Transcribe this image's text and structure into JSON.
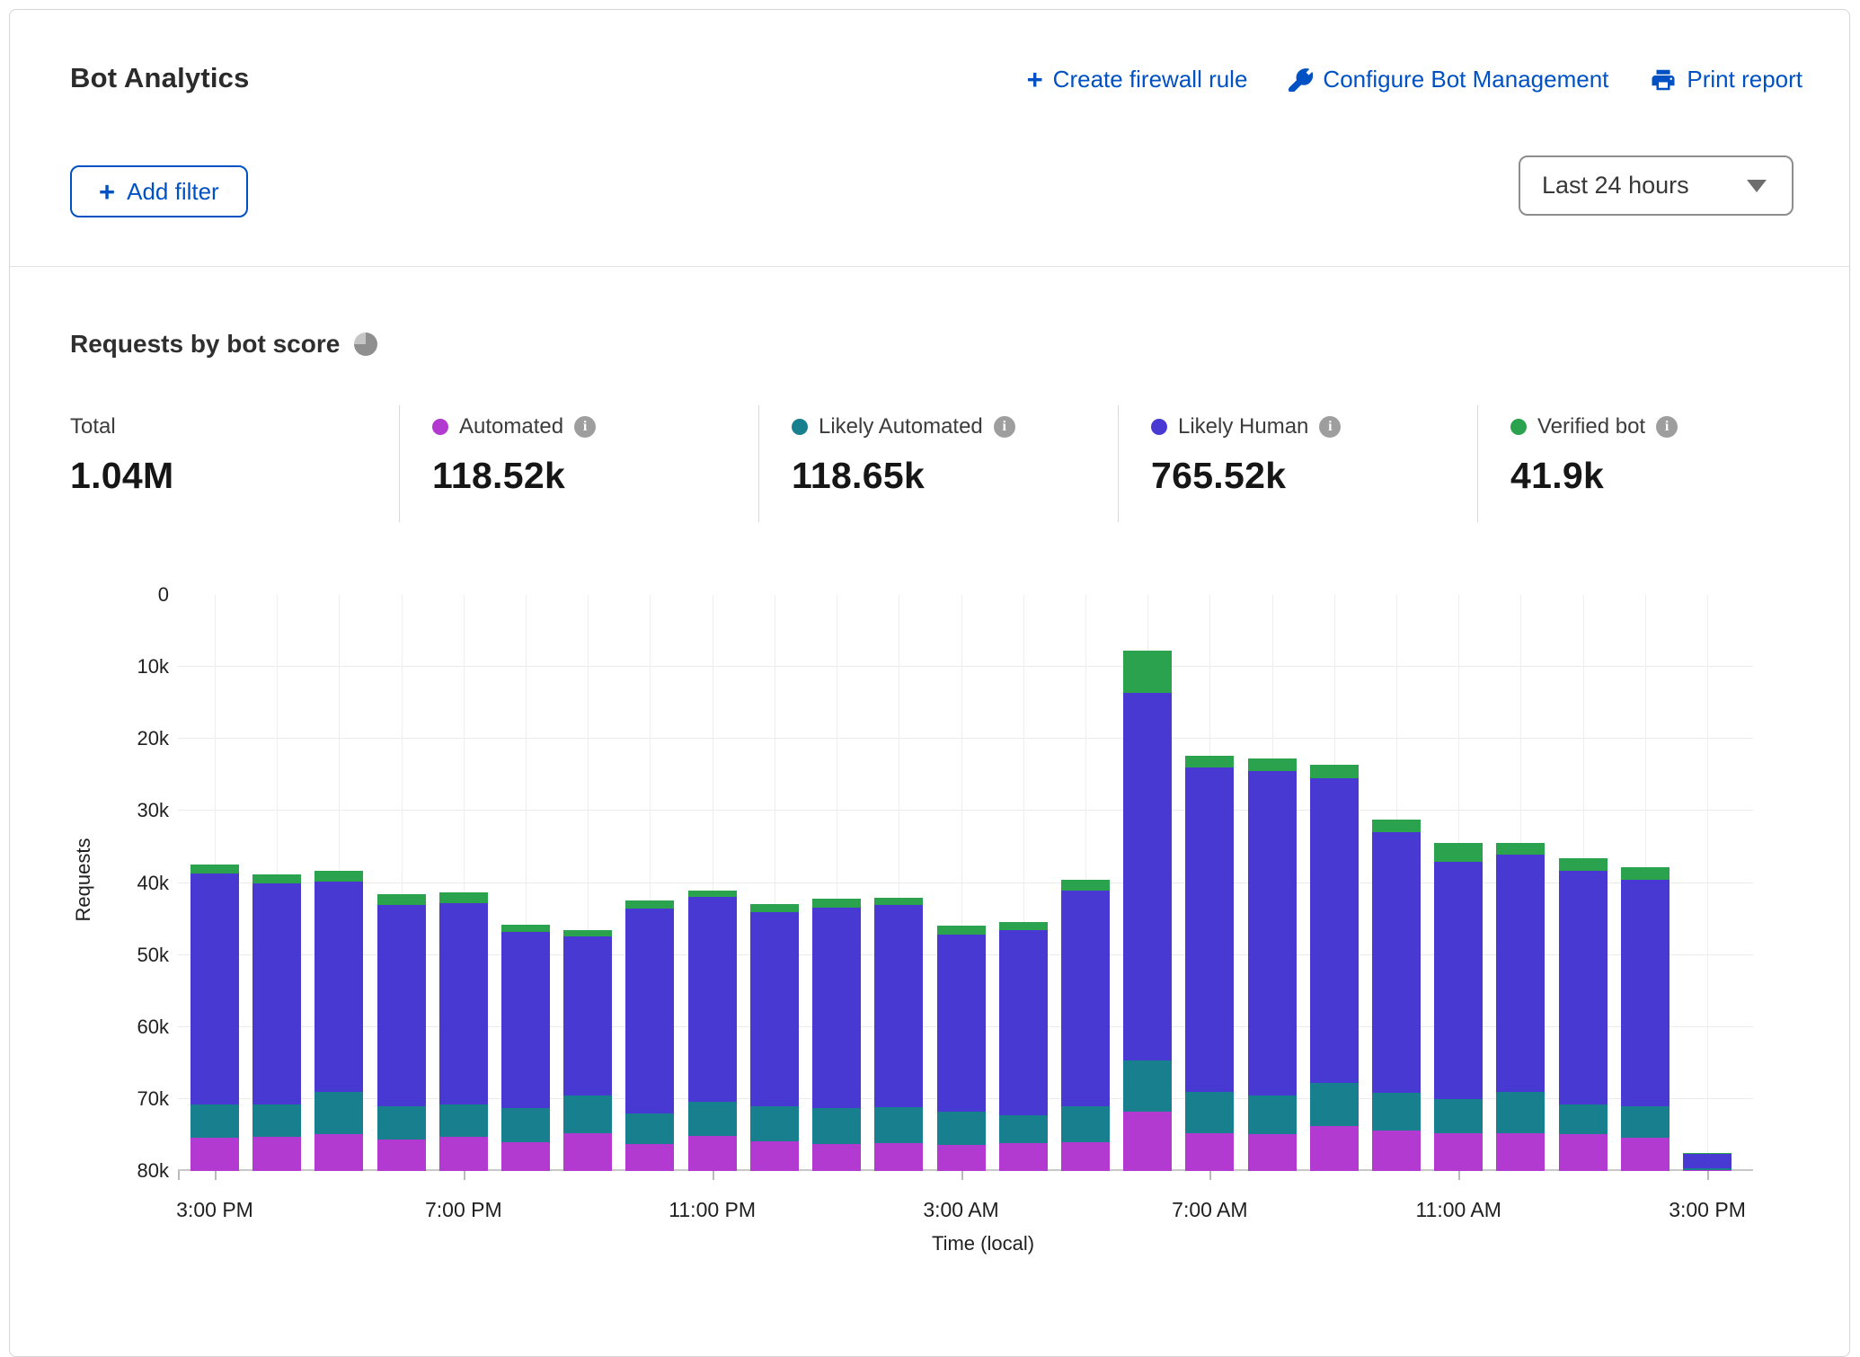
{
  "header": {
    "title": "Bot Analytics",
    "actions": {
      "create_firewall_rule": "Create firewall rule",
      "configure_bot_management": "Configure Bot Management",
      "print_report": "Print report"
    },
    "add_filter_label": "Add filter",
    "time_range_value": "Last 24 hours"
  },
  "section": {
    "title": "Requests by bot score"
  },
  "colors": {
    "automated": "#b23ad0",
    "likely_automated": "#177f8e",
    "likely_human": "#4839d3",
    "verified_bot": "#2ba24d",
    "link_blue": "#0051c3"
  },
  "stats": [
    {
      "label": "Total",
      "value": "1.04M"
    },
    {
      "label": "Automated",
      "value": "118.52k",
      "color": "#b23ad0"
    },
    {
      "label": "Likely Automated",
      "value": "118.65k",
      "color": "#177f8e"
    },
    {
      "label": "Likely Human",
      "value": "765.52k",
      "color": "#4839d3"
    },
    {
      "label": "Verified bot",
      "value": "41.9k",
      "color": "#2ba24d"
    }
  ],
  "chart_data": {
    "type": "bar",
    "stacked": true,
    "title": "Requests by bot score",
    "xlabel": "Time (local)",
    "ylabel": "Requests",
    "ylim": [
      0,
      80000
    ],
    "grid": true,
    "y_ticks": [
      "0",
      "10k",
      "20k",
      "30k",
      "40k",
      "50k",
      "60k",
      "70k",
      "80k"
    ],
    "x_tick_labels": [
      "3:00 PM",
      "7:00 PM",
      "11:00 PM",
      "3:00 AM",
      "7:00 AM",
      "11:00 AM",
      "3:00 PM"
    ],
    "x_tick_every": 4,
    "categories": [
      "3:00 PM",
      "4:00 PM",
      "5:00 PM",
      "6:00 PM",
      "7:00 PM",
      "8:00 PM",
      "9:00 PM",
      "10:00 PM",
      "11:00 PM",
      "12:00 AM",
      "1:00 AM",
      "2:00 AM",
      "3:00 AM",
      "4:00 AM",
      "5:00 AM",
      "6:00 AM",
      "7:00 AM",
      "8:00 AM",
      "9:00 AM",
      "10:00 AM",
      "11:00 AM",
      "12:00 PM",
      "1:00 PM",
      "2:00 PM",
      "3:00 PM"
    ],
    "series": [
      {
        "name": "Automated",
        "color": "#b23ad0",
        "values": [
          4600,
          4800,
          5100,
          4400,
          4700,
          4000,
          5300,
          3800,
          4900,
          4100,
          3800,
          3900,
          3600,
          3900,
          4000,
          8300,
          5300,
          5100,
          6200,
          5600,
          5300,
          5200,
          5100,
          4600,
          150
        ]
      },
      {
        "name": "Likely Automated",
        "color": "#177f8e",
        "values": [
          4600,
          4500,
          5900,
          4600,
          4600,
          4700,
          5200,
          4200,
          4700,
          4900,
          4900,
          5000,
          4700,
          3900,
          5000,
          7000,
          5700,
          5400,
          6000,
          5200,
          4700,
          5800,
          4200,
          4400,
          250
        ]
      },
      {
        "name": "Likely Human",
        "color": "#4839d3",
        "values": [
          32100,
          30600,
          29200,
          27900,
          27900,
          24500,
          22100,
          28400,
          28500,
          27000,
          27900,
          28000,
          24500,
          25700,
          30000,
          51100,
          45000,
          45100,
          42400,
          36200,
          32900,
          32900,
          32400,
          31500,
          1950
        ]
      },
      {
        "name": "Verified bot",
        "color": "#2ba24d",
        "values": [
          1300,
          1300,
          1500,
          1500,
          1500,
          1000,
          800,
          1200,
          900,
          1100,
          1200,
          1000,
          1300,
          1100,
          1400,
          5900,
          1700,
          1700,
          1800,
          1800,
          2600,
          1700,
          1700,
          1700,
          100
        ]
      }
    ]
  }
}
